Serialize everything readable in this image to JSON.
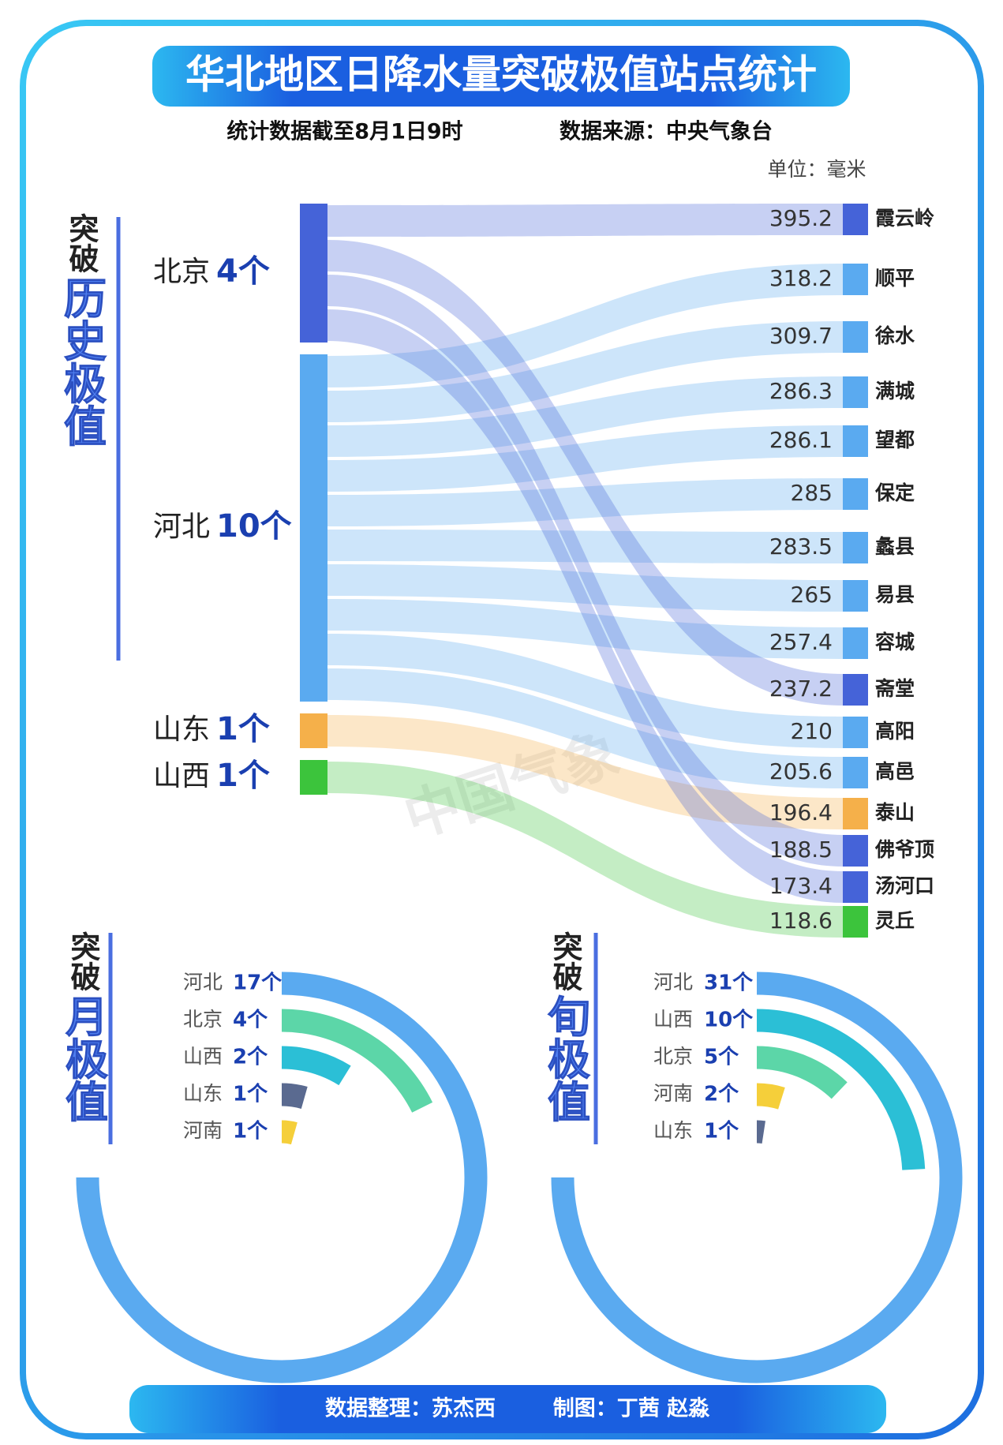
{
  "header": {
    "title": "华北地区日降水量突破极值站点统计",
    "subtitle": "统计数据截至8月1日9时",
    "source": "数据来源：中央气象台"
  },
  "watermark": "中国气象",
  "footer": {
    "credit": "数据整理：苏杰西",
    "design": "制图：丁茜  赵淼"
  },
  "chart_data": [
    {
      "type": "sankey",
      "title_lead": "突破",
      "title": "历史极值",
      "unit": "单位：毫米",
      "sources": [
        {
          "name": "北京",
          "count": 4,
          "count_label": "4个",
          "color": "#4563d8"
        },
        {
          "name": "河北",
          "count": 10,
          "count_label": "10个",
          "color": "#5aaaf0"
        },
        {
          "name": "山东",
          "count": 1,
          "count_label": "1个",
          "color": "#f5b04a"
        },
        {
          "name": "山西",
          "count": 1,
          "count_label": "1个",
          "color": "#3cc43c"
        }
      ],
      "targets": [
        {
          "name": "霞云岭",
          "value": 395.2,
          "source": "北京"
        },
        {
          "name": "顺平",
          "value": 318.2,
          "source": "河北"
        },
        {
          "name": "徐水",
          "value": 309.7,
          "source": "河北"
        },
        {
          "name": "满城",
          "value": 286.3,
          "source": "河北"
        },
        {
          "name": "望都",
          "value": 286.1,
          "source": "河北"
        },
        {
          "name": "保定",
          "value": 285,
          "source": "河北"
        },
        {
          "name": "蠡县",
          "value": 283.5,
          "source": "河北"
        },
        {
          "name": "易县",
          "value": 265,
          "source": "河北"
        },
        {
          "name": "容城",
          "value": 257.4,
          "source": "河北"
        },
        {
          "name": "斋堂",
          "value": 237.2,
          "source": "北京"
        },
        {
          "name": "高阳",
          "value": 210,
          "source": "河北"
        },
        {
          "name": "高邑",
          "value": 205.6,
          "source": "河北"
        },
        {
          "name": "泰山",
          "value": 196.4,
          "source": "山东"
        },
        {
          "name": "佛爷顶",
          "value": 188.5,
          "source": "北京"
        },
        {
          "name": "汤河口",
          "value": 173.4,
          "source": "北京"
        },
        {
          "name": "灵丘",
          "value": 118.6,
          "source": "山西"
        }
      ]
    },
    {
      "type": "radial_bar",
      "title_lead": "突破",
      "title": "月极值",
      "categories": [
        "河北",
        "北京",
        "山西",
        "山东",
        "河南"
      ],
      "values": [
        17,
        4,
        2,
        1,
        1
      ],
      "value_labels": [
        "17个",
        "4个",
        "2个",
        "1个",
        "1个"
      ],
      "colors": [
        "#5aaaf0",
        "#5cd6a8",
        "#2bbfd6",
        "#5a6a90",
        "#f5cf3a"
      ]
    },
    {
      "type": "radial_bar",
      "title_lead": "突破",
      "title": "旬极值",
      "categories": [
        "河北",
        "山西",
        "北京",
        "河南",
        "山东"
      ],
      "values": [
        31,
        10,
        5,
        2,
        1
      ],
      "value_labels": [
        "31个",
        "10个",
        "5个",
        "2个",
        "1个"
      ],
      "colors": [
        "#5aaaf0",
        "#2bbfd6",
        "#5cd6a8",
        "#f5cf3a",
        "#5a6a90"
      ]
    }
  ]
}
